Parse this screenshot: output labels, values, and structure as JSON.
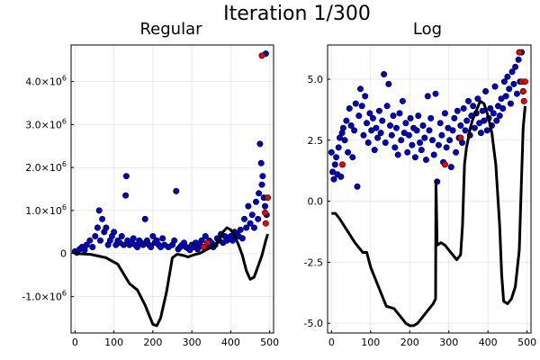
{
  "figure": {
    "title": "Iteration 1/300"
  },
  "chart_data": [
    {
      "type": "scatter",
      "title": "Regular",
      "xlabel": "",
      "ylabel": "",
      "xlim": [
        -10,
        510
      ],
      "ylim": [
        -1850000,
        4850000
      ],
      "xticks": [
        0,
        100,
        200,
        300,
        400,
        500
      ],
      "yticks": [
        {
          "value": -1000000,
          "mant": "-1.0×10",
          "exp": "6"
        },
        {
          "value": 0,
          "mant": "0",
          "exp": ""
        },
        {
          "value": 1000000,
          "mant": "1.0×10",
          "exp": "6"
        },
        {
          "value": 2000000,
          "mant": "2.0×10",
          "exp": "6"
        },
        {
          "value": 3000000,
          "mant": "3.0×10",
          "exp": "6"
        },
        {
          "value": 4000000,
          "mant": "4.0×10",
          "exp": "6"
        }
      ],
      "grid": true,
      "legend": "none",
      "series": [
        {
          "kind": "points",
          "color": "#0000cc",
          "x": [
            0,
            5,
            12,
            18,
            25,
            30,
            38,
            45,
            52,
            58,
            62,
            65,
            70,
            75,
            80,
            85,
            90,
            95,
            100,
            105,
            110,
            115,
            120,
            125,
            130,
            132,
            135,
            140,
            145,
            150,
            155,
            160,
            165,
            170,
            175,
            180,
            185,
            190,
            195,
            200,
            205,
            210,
            215,
            220,
            225,
            230,
            240,
            250,
            255,
            260,
            265,
            270,
            275,
            280,
            285,
            290,
            295,
            300,
            305,
            310,
            315,
            320,
            325,
            330,
            335,
            340,
            345,
            350,
            355,
            360,
            365,
            370,
            375,
            380,
            385,
            390,
            395,
            400,
            405,
            410,
            415,
            420,
            425,
            430,
            435,
            440,
            445,
            450,
            455,
            460,
            465,
            470,
            472,
            475,
            478,
            480,
            482,
            485,
            488,
            490,
            492
          ],
          "y": [
            50000,
            20000,
            100000,
            150000,
            80000,
            200000,
            300000,
            150000,
            400000,
            600000,
            1000000,
            300000,
            800000,
            500000,
            600000,
            200000,
            300000,
            400000,
            500000,
            200000,
            300000,
            250000,
            400000,
            200000,
            1350000,
            1800000,
            300000,
            200000,
            250000,
            350000,
            200000,
            150000,
            300000,
            250000,
            200000,
            800000,
            300000,
            200000,
            150000,
            400000,
            250000,
            300000,
            200000,
            150000,
            350000,
            200000,
            150000,
            200000,
            300000,
            1450000,
            100000,
            150000,
            200000,
            250000,
            150000,
            120000,
            80000,
            200000,
            150000,
            250000,
            100000,
            200000,
            300000,
            150000,
            400000,
            200000,
            300000,
            250000,
            150000,
            200000,
            350000,
            300000,
            450000,
            250000,
            400000,
            300000,
            350000,
            400000,
            300000,
            500000,
            450000,
            400000,
            550000,
            350000,
            800000,
            600000,
            1100000,
            700000,
            900000,
            600000,
            1200000,
            800000,
            1400000,
            2550000,
            2100000,
            1600000,
            1800000,
            1300000,
            1100000,
            4650000,
            900000
          ]
        },
        {
          "kind": "points",
          "color": "#ee0000",
          "x": [
            330,
            340,
            480,
            488,
            490,
            495
          ],
          "y": [
            150000,
            250000,
            4600000,
            950000,
            700000,
            1300000
          ]
        },
        {
          "kind": "line",
          "color": "#000000",
          "x": [
            0,
            40,
            80,
            110,
            140,
            160,
            180,
            200,
            210,
            220,
            235,
            250,
            262,
            265,
            270,
            280,
            290,
            300,
            310,
            320,
            330,
            340,
            350,
            360,
            370,
            380,
            390,
            400,
            410,
            420,
            430,
            440,
            450,
            460,
            470,
            480,
            490,
            495
          ],
          "y": [
            0,
            -20000,
            -100000,
            -250000,
            -700000,
            -850000,
            -1200000,
            -1650000,
            -1680000,
            -1500000,
            -900000,
            -100000,
            -20000,
            -20000,
            -30000,
            -50000,
            -80000,
            -50000,
            -20000,
            0,
            50000,
            100000,
            150000,
            200000,
            300000,
            500000,
            600000,
            550000,
            400000,
            200000,
            -50000,
            -400000,
            -600000,
            -550000,
            -300000,
            -50000,
            300000,
            450000
          ]
        }
      ]
    },
    {
      "type": "scatter",
      "title": "Log",
      "xlabel": "",
      "ylabel": "",
      "xlim": [
        -10,
        510
      ],
      "ylim": [
        -5.4,
        6.4
      ],
      "xticks": [
        0,
        100,
        200,
        300,
        400,
        500
      ],
      "yticks": [
        {
          "value": -5.0,
          "mant": "-5.0",
          "exp": ""
        },
        {
          "value": -2.5,
          "mant": "-2.5",
          "exp": ""
        },
        {
          "value": 0.0,
          "mant": "0.0",
          "exp": ""
        },
        {
          "value": 2.5,
          "mant": "2.5",
          "exp": ""
        },
        {
          "value": 5.0,
          "mant": "5.0",
          "exp": ""
        }
      ],
      "grid": true,
      "legend": "none",
      "series": [
        {
          "kind": "points",
          "color": "#0000cc",
          "x": [
            0,
            3,
            6,
            9,
            12,
            15,
            18,
            21,
            24,
            27,
            30,
            34,
            38,
            42,
            46,
            50,
            54,
            58,
            62,
            66,
            70,
            74,
            78,
            82,
            86,
            90,
            94,
            98,
            102,
            106,
            110,
            114,
            118,
            122,
            126,
            130,
            134,
            138,
            142,
            146,
            150,
            154,
            158,
            162,
            166,
            170,
            174,
            178,
            182,
            186,
            190,
            194,
            198,
            202,
            206,
            210,
            214,
            218,
            222,
            226,
            230,
            234,
            238,
            242,
            246,
            250,
            254,
            258,
            262,
            266,
            270,
            274,
            278,
            282,
            286,
            290,
            294,
            298,
            302,
            306,
            310,
            314,
            318,
            322,
            326,
            330,
            334,
            338,
            342,
            346,
            350,
            354,
            358,
            362,
            366,
            370,
            374,
            378,
            382,
            386,
            390,
            394,
            398,
            402,
            406,
            410,
            414,
            418,
            422,
            426,
            430,
            434,
            438,
            442,
            446,
            450,
            454,
            458,
            462,
            466,
            470,
            474,
            478,
            482,
            486,
            490
          ],
          "y": [
            2.0,
            1.2,
            0.9,
            1.5,
            1.8,
            1.1,
            2.2,
            2.6,
            1.0,
            2.8,
            3.0,
            2.5,
            3.3,
            2.0,
            3.8,
            3.1,
            1.8,
            2.9,
            4.0,
            0.6,
            3.5,
            4.6,
            3.9,
            2.7,
            4.3,
            3.2,
            2.4,
            3.6,
            2.9,
            3.4,
            2.1,
            3.0,
            2.6,
            3.7,
            2.8,
            3.3,
            5.2,
            2.4,
            3.9,
            4.8,
            3.1,
            2.7,
            3.5,
            2.2,
            3.0,
            1.9,
            3.6,
            2.5,
            4.1,
            2.8,
            3.2,
            2.0,
            2.7,
            3.4,
            2.3,
            3.0,
            1.8,
            2.9,
            3.5,
            2.4,
            2.1,
            3.1,
            2.6,
            1.7,
            4.3,
            2.9,
            3.4,
            2.5,
            1.9,
            4.4,
            0.8,
            2.3,
            3.2,
            2.7,
            1.6,
            3.6,
            2.2,
            3.0,
            2.5,
            1.4,
            2.9,
            3.4,
            2.0,
            3.7,
            2.6,
            3.1,
            2.4,
            3.8,
            2.9,
            3.3,
            4.1,
            2.7,
            3.5,
            3.9,
            3.0,
            3.6,
            4.2,
            3.2,
            2.8,
            3.7,
            3.3,
            4.5,
            2.9,
            3.4,
            3.8,
            3.1,
            3.6,
            4.7,
            3.3,
            3.9,
            3.5,
            4.2,
            3.8,
            4.9,
            4.3,
            5.1,
            4.6,
            4.0,
            5.3,
            4.8,
            5.5,
            4.4,
            5.8,
            4.9,
            6.1,
            4.5
          ]
        },
        {
          "kind": "points",
          "color": "#ee0000",
          "x": [
            28,
            290,
            330,
            480,
            487,
            490,
            492,
            495
          ],
          "y": [
            1.5,
            1.5,
            2.6,
            6.1,
            4.9,
            4.5,
            4.1,
            4.9
          ]
        },
        {
          "kind": "line",
          "color": "#000000",
          "x": [
            0,
            10,
            20,
            40,
            60,
            80,
            90,
            100,
            120,
            140,
            160,
            170,
            180,
            190,
            200,
            210,
            220,
            240,
            260,
            266,
            267,
            270,
            280,
            290,
            300,
            310,
            320,
            330,
            335,
            340,
            345,
            350,
            355,
            360,
            370,
            380,
            390,
            400,
            410,
            420,
            430,
            435,
            440,
            450,
            460,
            470,
            480,
            485,
            490,
            495
          ],
          "y": [
            -0.5,
            -0.5,
            -0.7,
            -1.2,
            -1.7,
            -2.1,
            -2.1,
            -2.7,
            -3.5,
            -4.3,
            -4.4,
            -4.6,
            -4.8,
            -5.0,
            -5.1,
            -5.1,
            -5.0,
            -4.6,
            -4.2,
            -4.0,
            0.8,
            -1.8,
            -1.7,
            -1.8,
            -2.0,
            -2.2,
            -2.4,
            -2.2,
            -1.0,
            1.5,
            2.2,
            2.6,
            3.0,
            3.3,
            3.7,
            4.1,
            4.0,
            3.5,
            2.8,
            1.5,
            -1.0,
            -3.0,
            -4.1,
            -4.2,
            -4.0,
            -3.5,
            -2.0,
            0.5,
            3.0,
            3.9
          ]
        }
      ]
    }
  ]
}
